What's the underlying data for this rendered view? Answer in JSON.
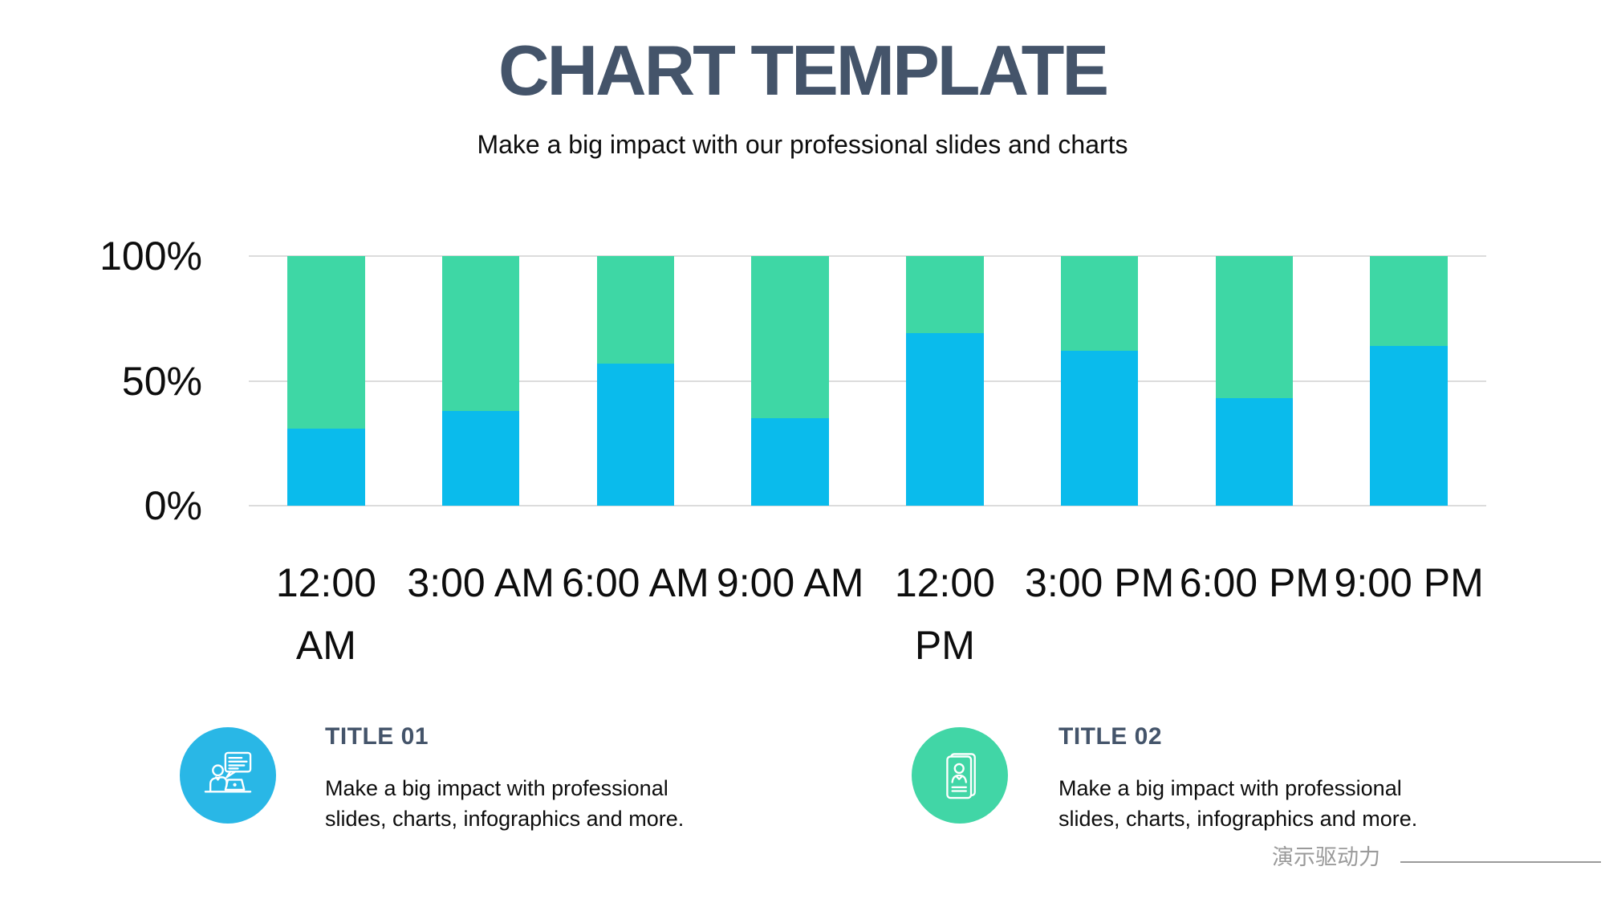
{
  "header": {
    "title": "CHART TEMPLATE",
    "subtitle": "Make a big impact with our professional slides and charts"
  },
  "chart_data": {
    "type": "bar",
    "stacked": true,
    "percent_stacked": true,
    "title": "",
    "categories": [
      "12:00 AM",
      "3:00 AM",
      "6:00 AM",
      "9:00 AM",
      "12:00 PM",
      "3:00 PM",
      "6:00 PM",
      "9:00 PM"
    ],
    "series": [
      {
        "position": "bottom",
        "color": "#0abbec",
        "values": [
          31,
          38,
          57,
          35,
          69,
          62,
          43,
          64
        ]
      },
      {
        "position": "top",
        "color": "#3ed7a5",
        "values": [
          69,
          62,
          43,
          65,
          31,
          38,
          57,
          36
        ]
      }
    ],
    "y_ticks": [
      "100%",
      "50%",
      "0%"
    ],
    "ylim": [
      0,
      100
    ],
    "grid": true,
    "legend": false,
    "gridline_color": "#dcdcdc"
  },
  "sections": [
    {
      "title": "TITLE 01",
      "body": "Make a big impact with professional slides, charts, infographics and more.",
      "icon": "person-presenting-laptop-icon",
      "circle_color": "#29b7e6"
    },
    {
      "title": "TITLE 02",
      "body": "Make a big impact with professional slides, charts, infographics and more.",
      "icon": "resume-booklet-icon",
      "circle_color": "#41d6a6"
    }
  ],
  "watermark": {
    "text": "演示驱动力"
  }
}
